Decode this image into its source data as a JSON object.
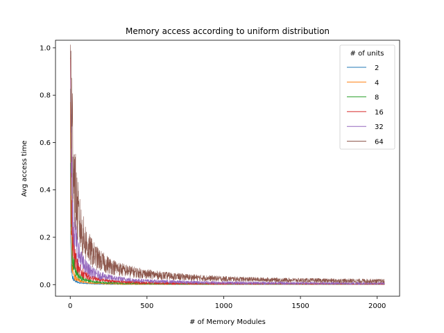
{
  "chart_data": {
    "type": "line",
    "title": "Memory access according to uniform distribution",
    "xlabel": "# of Memory Modules",
    "ylabel": "Avg access time",
    "xlim": [
      -96,
      2146
    ],
    "ylim": [
      -0.049,
      1.032
    ],
    "xticks": [
      0,
      500,
      1000,
      1500,
      2000
    ],
    "xtick_labels": [
      "0",
      "500",
      "1000",
      "1500",
      "2000"
    ],
    "yticks": [
      0.0,
      0.2,
      0.4,
      0.6,
      0.8,
      1.0
    ],
    "ytick_labels": [
      "0.0",
      "0.2",
      "0.4",
      "0.6",
      "0.8",
      "1.0"
    ],
    "legend_title": "# of units",
    "legend_position": "upper right",
    "x_range": [
      1,
      2048
    ],
    "series": [
      {
        "name": "2",
        "color": "#1f77b4",
        "points": [
          [
            1,
            0.5
          ],
          [
            2,
            0.25
          ],
          [
            5,
            0.1
          ],
          [
            10,
            0.05
          ],
          [
            20,
            0.025
          ],
          [
            50,
            0.01
          ],
          [
            100,
            0.005
          ],
          [
            200,
            0.0025
          ],
          [
            500,
            0.001
          ],
          [
            1000,
            0.0005
          ],
          [
            2048,
            0.0002
          ]
        ],
        "noise_level": 0.01
      },
      {
        "name": "4",
        "color": "#ff7f0e",
        "points": [
          [
            1,
            0.75
          ],
          [
            2,
            0.44
          ],
          [
            5,
            0.19
          ],
          [
            10,
            0.1
          ],
          [
            20,
            0.05
          ],
          [
            50,
            0.02
          ],
          [
            100,
            0.01
          ],
          [
            200,
            0.005
          ],
          [
            500,
            0.002
          ],
          [
            1000,
            0.001
          ],
          [
            2048,
            0.0005
          ]
        ],
        "noise_level": 0.015
      },
      {
        "name": "8",
        "color": "#2ca02c",
        "points": [
          [
            1,
            0.88
          ],
          [
            2,
            0.66
          ],
          [
            5,
            0.34
          ],
          [
            10,
            0.19
          ],
          [
            20,
            0.1
          ],
          [
            50,
            0.04
          ],
          [
            100,
            0.02
          ],
          [
            200,
            0.01
          ],
          [
            500,
            0.004
          ],
          [
            1000,
            0.002
          ],
          [
            2048,
            0.001
          ]
        ],
        "noise_level": 0.022
      },
      {
        "name": "16",
        "color": "#d62728",
        "points": [
          [
            1,
            0.94
          ],
          [
            2,
            0.82
          ],
          [
            5,
            0.52
          ],
          [
            10,
            0.33
          ],
          [
            20,
            0.18
          ],
          [
            50,
            0.08
          ],
          [
            100,
            0.04
          ],
          [
            200,
            0.02
          ],
          [
            500,
            0.008
          ],
          [
            1000,
            0.004
          ],
          [
            2048,
            0.002
          ]
        ],
        "noise_level": 0.03
      },
      {
        "name": "32",
        "color": "#9467bd",
        "points": [
          [
            1,
            0.97
          ],
          [
            2,
            0.91
          ],
          [
            5,
            0.68
          ],
          [
            10,
            0.49
          ],
          [
            20,
            0.3
          ],
          [
            50,
            0.15
          ],
          [
            100,
            0.075
          ],
          [
            200,
            0.038
          ],
          [
            500,
            0.016
          ],
          [
            1000,
            0.008
          ],
          [
            2048,
            0.004
          ]
        ],
        "noise_level": 0.035
      },
      {
        "name": "64",
        "color": "#8c564b",
        "points": [
          [
            1,
            0.985
          ],
          [
            2,
            0.96
          ],
          [
            5,
            0.84
          ],
          [
            10,
            0.68
          ],
          [
            20,
            0.56
          ],
          [
            50,
            0.3
          ],
          [
            100,
            0.18
          ],
          [
            200,
            0.1
          ],
          [
            500,
            0.045
          ],
          [
            1000,
            0.025
          ],
          [
            2048,
            0.015
          ]
        ],
        "noise_level": 0.045
      }
    ]
  }
}
